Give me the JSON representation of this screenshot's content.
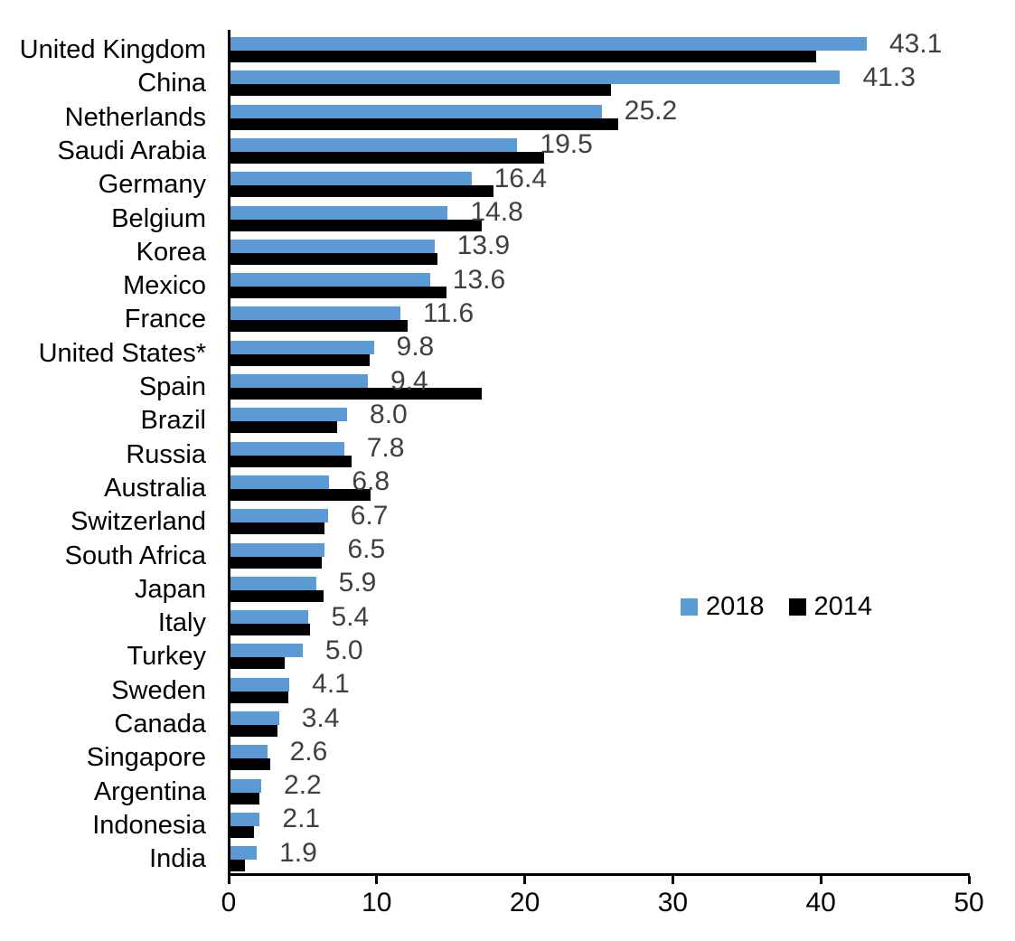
{
  "chart_data": {
    "type": "bar",
    "orientation": "horizontal",
    "title": "",
    "xlabel": "",
    "ylabel": "",
    "grid": false,
    "xlim": [
      0,
      50
    ],
    "x_ticks": [
      "0",
      "10",
      "20",
      "30",
      "40",
      "50"
    ],
    "legend_position": "middle-right",
    "categories": [
      "United Kingdom",
      "China",
      "Netherlands",
      "Saudi Arabia",
      "Germany",
      "Belgium",
      "Korea",
      "Mexico",
      "France",
      "United States*",
      "Spain",
      "Brazil",
      "Russia",
      "Australia",
      "Switzerland",
      "South Africa",
      "Japan",
      "Italy",
      "Turkey",
      "Sweden",
      "Canada",
      "Singapore",
      "Argentina",
      "Indonesia",
      "India"
    ],
    "series": [
      {
        "name": "2018",
        "color": "#5B9BD5",
        "values": [
          43.1,
          41.3,
          25.2,
          19.5,
          16.4,
          14.8,
          13.9,
          13.6,
          11.6,
          9.8,
          9.4,
          8.0,
          7.8,
          6.8,
          6.7,
          6.5,
          5.9,
          5.4,
          5.0,
          4.1,
          3.4,
          2.6,
          2.2,
          2.1,
          1.9
        ],
        "data_labels": [
          "43.1",
          "41.3",
          "25.2",
          "19.5",
          "16.4",
          "14.8",
          "13.9",
          "13.6",
          "11.6",
          "9.8",
          "9.4",
          "8.0",
          "7.8",
          "6.8",
          "6.7",
          "6.5",
          "5.9",
          "5.4",
          "5.0",
          "4.1",
          "3.4",
          "2.6",
          "2.2",
          "2.1",
          "1.9"
        ]
      },
      {
        "name": "2014",
        "color": "#000000",
        "values": [
          39.7,
          25.8,
          26.3,
          21.3,
          17.9,
          17.1,
          14.1,
          14.7,
          12.1,
          9.5,
          17.1,
          7.3,
          8.3,
          9.6,
          6.5,
          6.3,
          6.4,
          5.5,
          3.8,
          4.0,
          3.3,
          2.8,
          2.1,
          1.7,
          1.1
        ],
        "data_labels": []
      }
    ],
    "value_label_color": "#404040",
    "axis_color": "#000000"
  }
}
